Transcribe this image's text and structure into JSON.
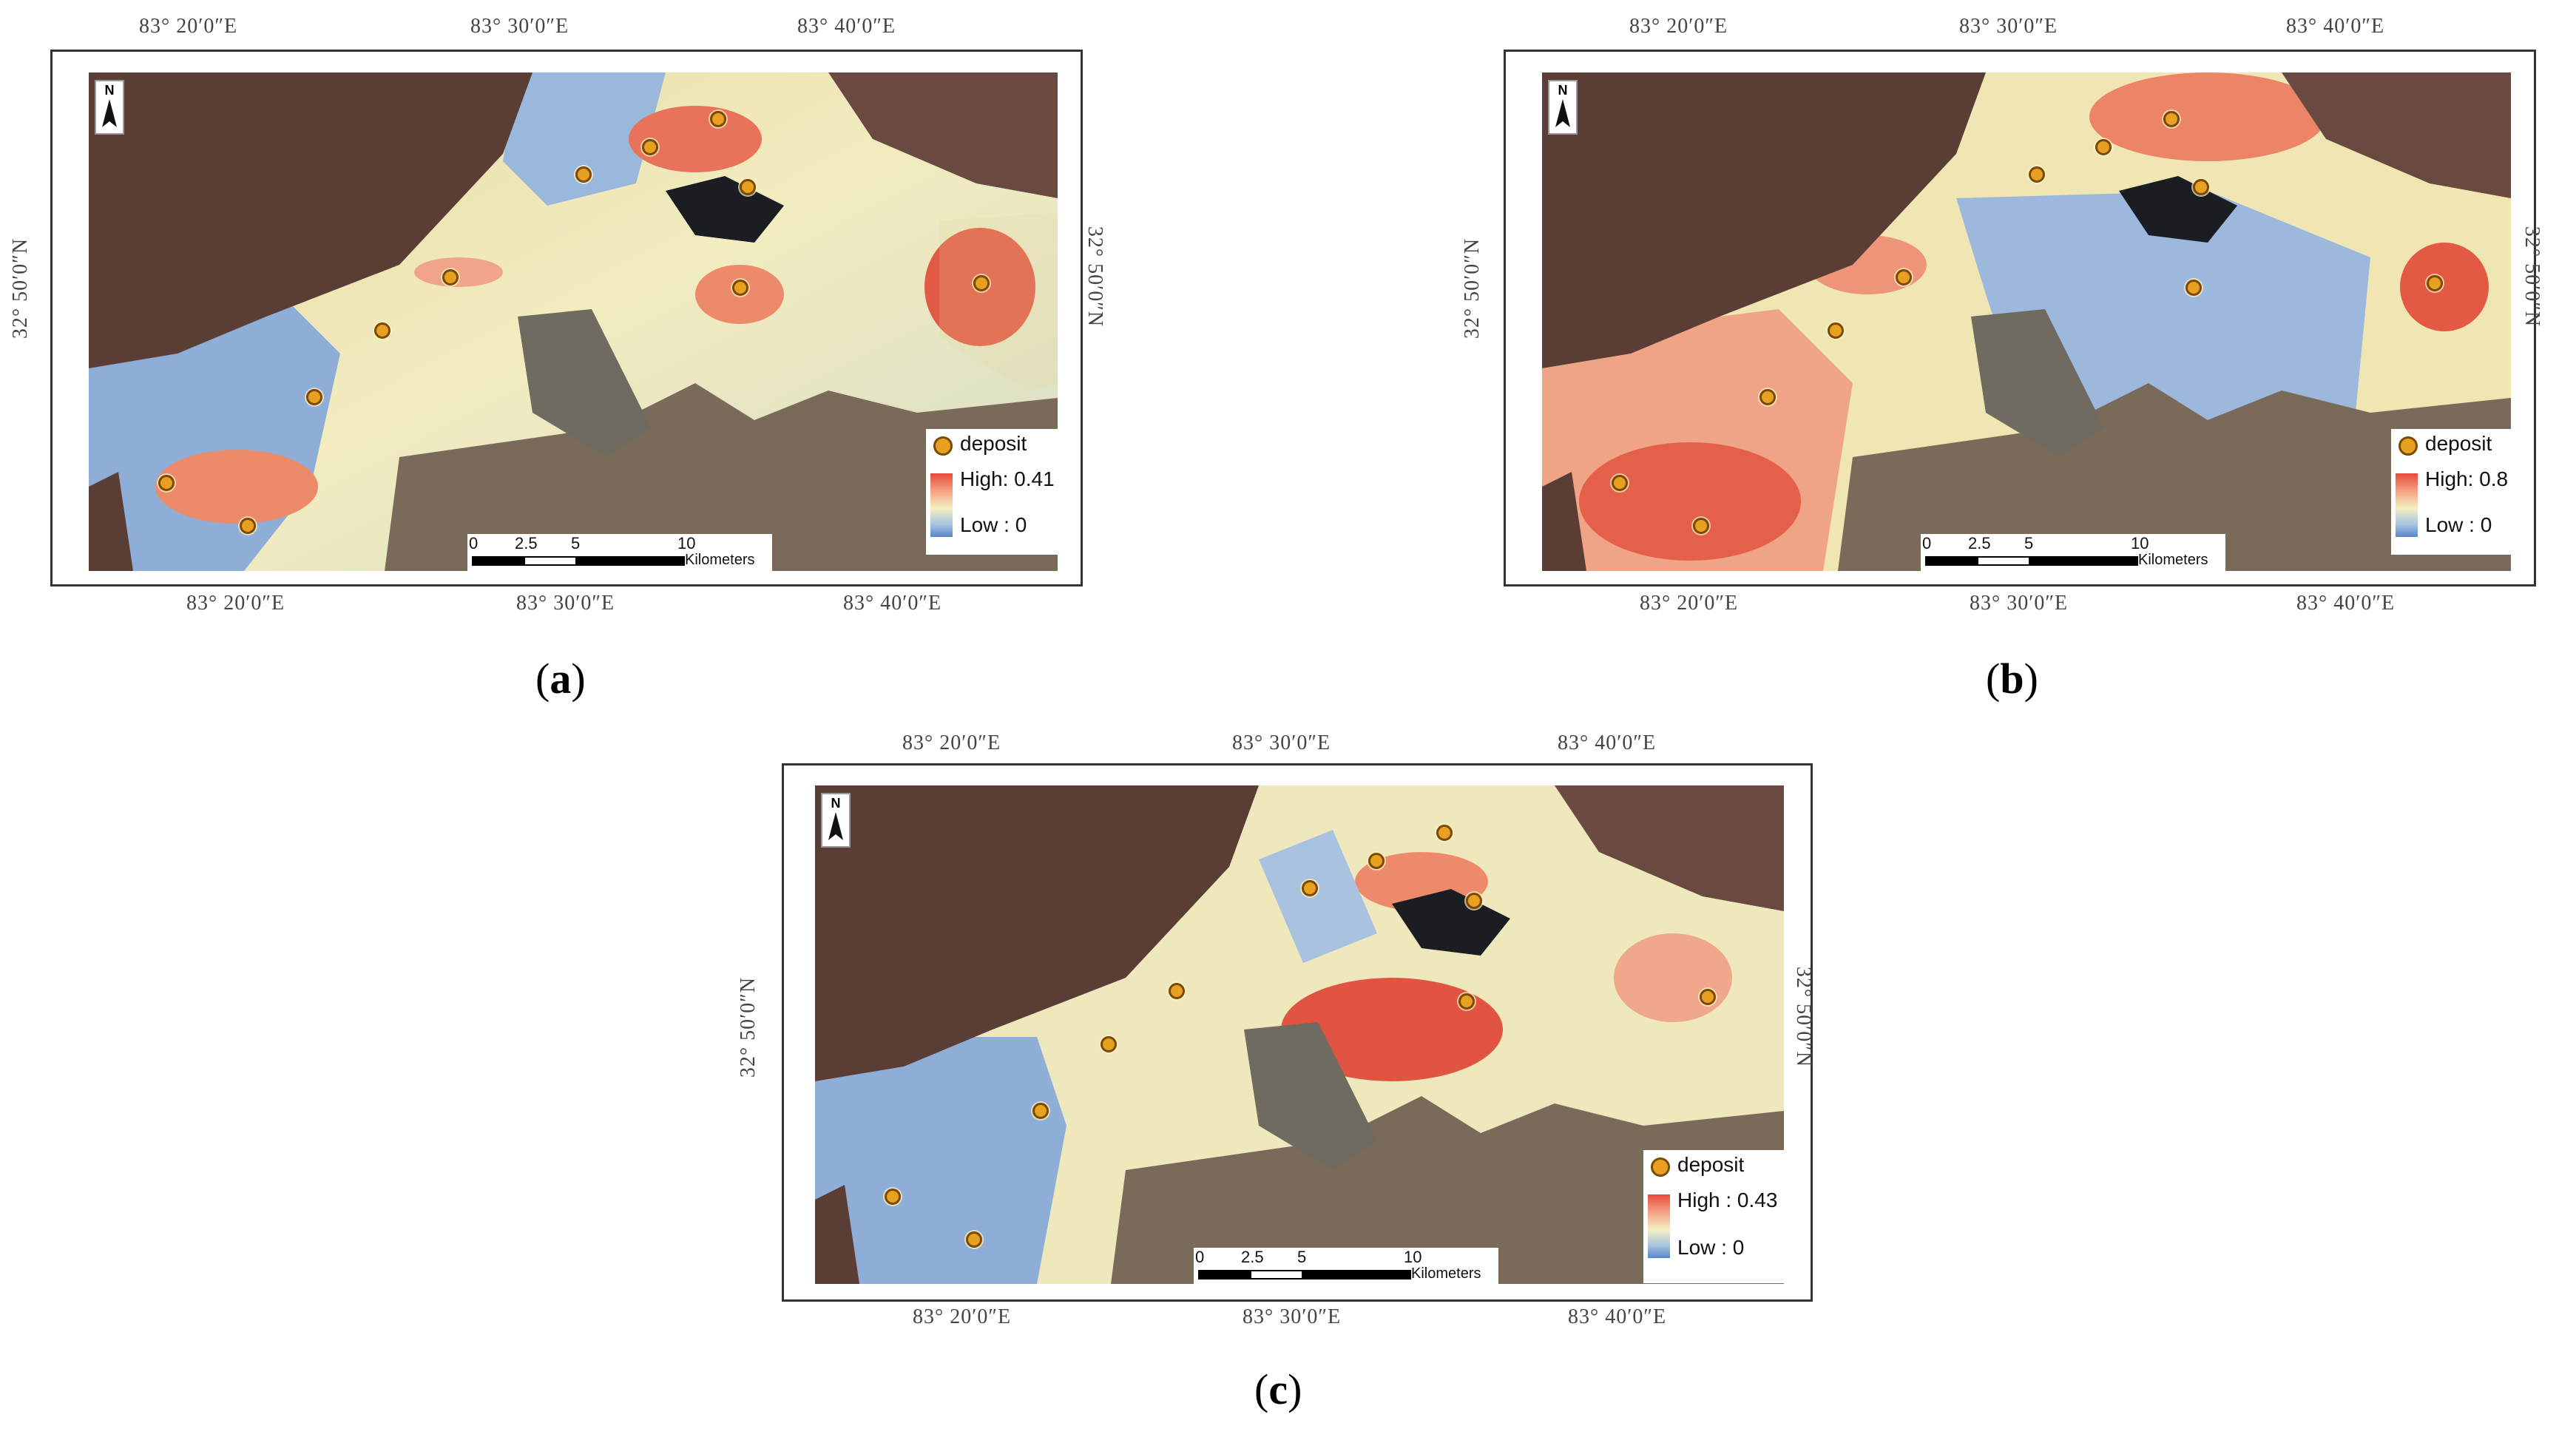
{
  "panels": [
    {
      "id": "a",
      "caption_letter": "a",
      "legend": {
        "deposit": "deposit",
        "high": "High: 0.41",
        "low": "Low : 0"
      }
    },
    {
      "id": "b",
      "caption_letter": "b",
      "legend": {
        "deposit": "deposit",
        "high": "High: 0.8",
        "low": "Low : 0"
      }
    },
    {
      "id": "c",
      "caption_letter": "c",
      "legend": {
        "deposit": "deposit",
        "high": "High : 0.43",
        "low": "Low : 0"
      }
    }
  ],
  "axes": {
    "lon_ticks": [
      "83° 20′0″E",
      "83° 30′0″E",
      "83° 40′0″E"
    ],
    "lat_tick": "32° 50′0″N"
  },
  "scale_bar": {
    "labels": [
      "0",
      "2.5",
      "5",
      "10"
    ],
    "unit": "Kilometers"
  },
  "north_arrow": {
    "label": "N"
  },
  "colors": {
    "high": "#e64a3a",
    "mid": "#f4f0c0",
    "low": "#5a86c8",
    "deposit": "#e8a020",
    "terrain": "#5a3e36"
  }
}
